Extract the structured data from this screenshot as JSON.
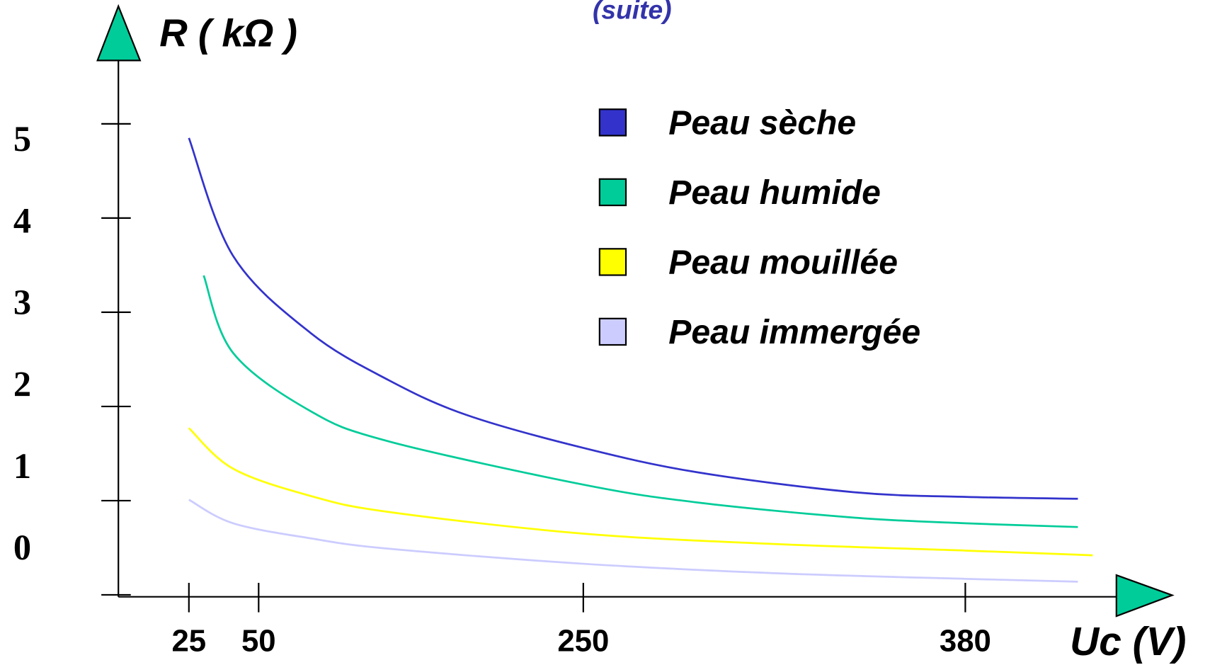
{
  "chart_data": {
    "type": "line",
    "title": "(suite)",
    "y_label": "R ( kΩ )",
    "x_label": "Uc (V)",
    "xlim": [
      0,
      431
    ],
    "xticks": [
      25,
      50,
      250,
      380
    ],
    "ylim": [
      0,
      5.5
    ],
    "yticks": [
      0,
      1,
      2,
      3,
      4,
      5
    ],
    "series": [
      {
        "name": "Peau sèche",
        "color": "#3333cc",
        "x": [
          25,
          40.8,
          82,
          130,
          178,
          250,
          289,
          342,
          380,
          418
        ],
        "values": [
          4.85,
          3.6,
          2.78,
          2.28,
          1.91,
          1.56,
          1.3,
          1.09,
          1.04,
          1.02
        ]
      },
      {
        "name": "Peau humide",
        "color": "#00cc99",
        "x": [
          30.3,
          40.8,
          82,
          130,
          250,
          289,
          342,
          380,
          418
        ],
        "values": [
          3.39,
          2.57,
          1.95,
          1.63,
          1.17,
          0.98,
          0.82,
          0.76,
          0.72
        ]
      },
      {
        "name": "Peau mouillée",
        "color": "#ffff00",
        "x": [
          25,
          40.8,
          82,
          130,
          250,
          315,
          380,
          423
        ],
        "values": [
          1.77,
          1.34,
          1.05,
          0.88,
          0.65,
          0.54,
          0.47,
          0.42
        ]
      },
      {
        "name": "Peau immergée",
        "color": "#ccccff",
        "x": [
          25,
          40.8,
          82,
          130,
          250,
          315,
          380,
          418
        ],
        "values": [
          1.01,
          0.76,
          0.6,
          0.49,
          0.33,
          0.23,
          0.17,
          0.14
        ]
      }
    ]
  }
}
